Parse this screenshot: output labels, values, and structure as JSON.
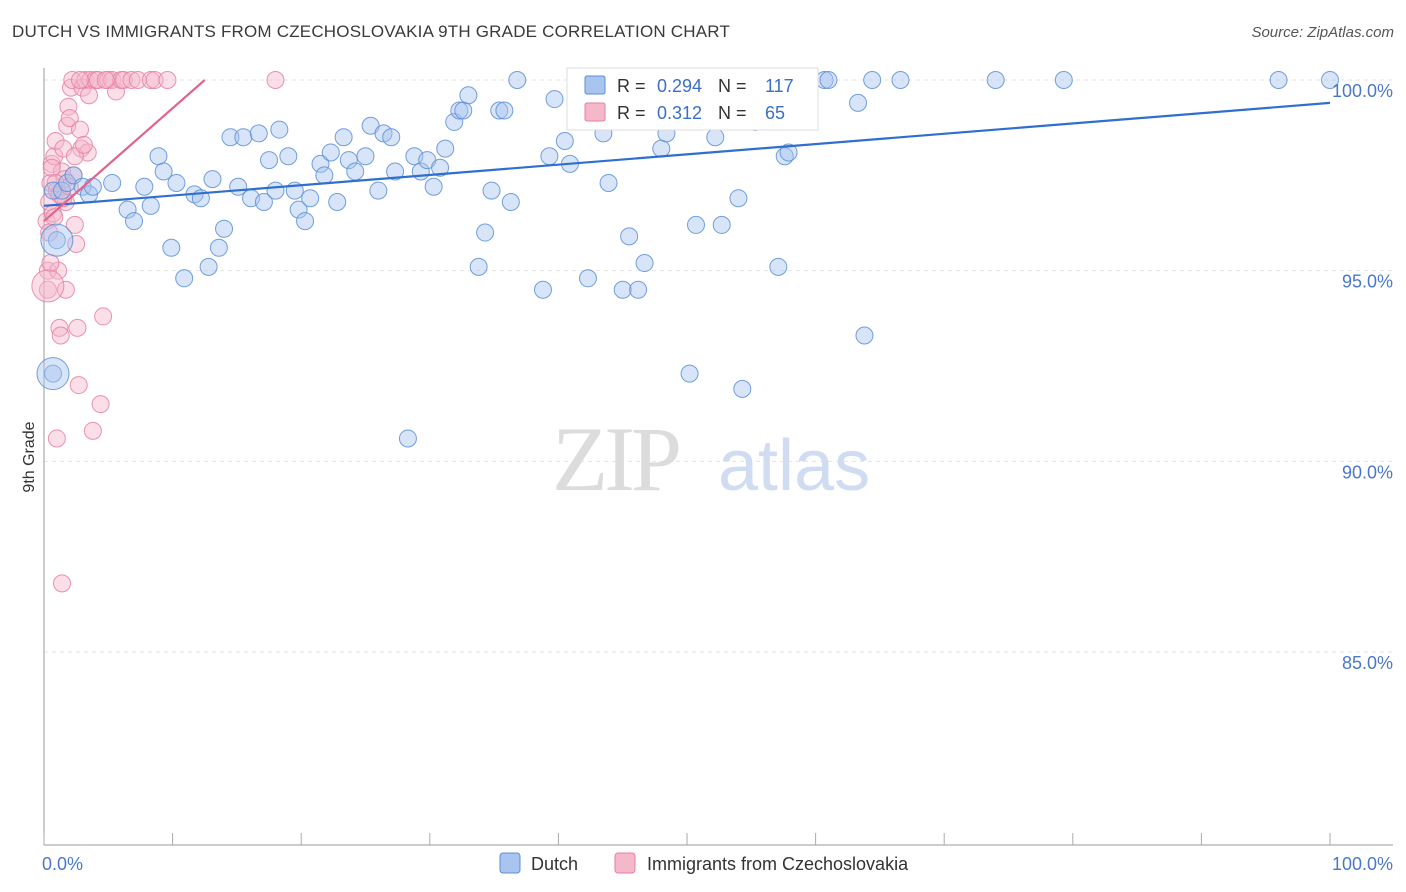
{
  "header": {
    "title": "DUTCH VS IMMIGRANTS FROM CZECHOSLOVAKIA 9TH GRADE CORRELATION CHART",
    "source": "Source: ZipAtlas.com"
  },
  "watermark": {
    "zip": "ZIP",
    "atlas": "atlas"
  },
  "legend": {
    "r_label": "R =",
    "n_label": "N =",
    "dutch": {
      "r": "0.294",
      "n": "117"
    },
    "czech": {
      "r": "0.312",
      "n": "65"
    }
  },
  "colors": {
    "blue": "#5b8fd6",
    "blue_fill": "#a9c4ef",
    "pink": "#e77fa2",
    "pink_fill": "#f5b8cb",
    "blue_line": "#2f6fcf",
    "pink_line": "#e0648e",
    "axis_text": "#4a78c8"
  },
  "chart_data": {
    "type": "scatter",
    "title": "DUTCH VS IMMIGRANTS FROM CZECHOSLOVAKIA 9TH GRADE CORRELATION CHART",
    "xlabel": "",
    "ylabel": "9th Grade",
    "xlim": [
      0,
      100
    ],
    "ylim": [
      80.5,
      100.9
    ],
    "x_tick_labels": [
      "0.0%",
      "100.0%"
    ],
    "y_ticks": [
      {
        "value": 100,
        "label": "100.0%"
      },
      {
        "value": 95,
        "label": "95.0%"
      },
      {
        "value": 90,
        "label": "90.0%"
      },
      {
        "value": 85,
        "label": "85.0%"
      }
    ],
    "series": [
      {
        "name": "Dutch",
        "color": "#5b8fd6",
        "trend": {
          "x": [
            0,
            100
          ],
          "y": [
            96.7,
            99.4
          ]
        },
        "points": [
          [
            0.7,
            97.1
          ],
          [
            1.0,
            95.8
          ],
          [
            0.7,
            92.3
          ],
          [
            1.4,
            97.1
          ],
          [
            1.8,
            97.3
          ],
          [
            2.3,
            97.5
          ],
          [
            3.0,
            97.2
          ],
          [
            3.5,
            97.0
          ],
          [
            3.8,
            97.2
          ],
          [
            5.3,
            97.3
          ],
          [
            6.5,
            96.6
          ],
          [
            7.0,
            96.3
          ],
          [
            7.8,
            97.2
          ],
          [
            8.3,
            96.7
          ],
          [
            8.9,
            98.0
          ],
          [
            9.3,
            97.6
          ],
          [
            9.9,
            95.6
          ],
          [
            10.3,
            97.3
          ],
          [
            10.9,
            94.8
          ],
          [
            11.7,
            97.0
          ],
          [
            12.2,
            96.9
          ],
          [
            12.8,
            95.1
          ],
          [
            13.1,
            97.4
          ],
          [
            13.6,
            95.6
          ],
          [
            14.0,
            96.1
          ],
          [
            14.5,
            98.5
          ],
          [
            15.1,
            97.2
          ],
          [
            15.5,
            98.5
          ],
          [
            16.1,
            96.9
          ],
          [
            16.7,
            98.6
          ],
          [
            17.1,
            96.8
          ],
          [
            17.5,
            97.9
          ],
          [
            18.0,
            97.1
          ],
          [
            18.3,
            98.7
          ],
          [
            19.0,
            98.0
          ],
          [
            19.5,
            97.1
          ],
          [
            19.8,
            96.6
          ],
          [
            20.3,
            96.3
          ],
          [
            20.7,
            96.9
          ],
          [
            21.5,
            97.8
          ],
          [
            21.8,
            97.5
          ],
          [
            22.3,
            98.1
          ],
          [
            22.8,
            96.8
          ],
          [
            23.3,
            98.5
          ],
          [
            23.7,
            97.9
          ],
          [
            24.2,
            97.6
          ],
          [
            25.0,
            98.0
          ],
          [
            25.4,
            98.8
          ],
          [
            26.0,
            97.1
          ],
          [
            26.4,
            98.6
          ],
          [
            27.0,
            98.5
          ],
          [
            27.3,
            97.6
          ],
          [
            28.3,
            90.6
          ],
          [
            28.8,
            98.0
          ],
          [
            29.3,
            97.6
          ],
          [
            29.8,
            97.9
          ],
          [
            30.3,
            97.2
          ],
          [
            30.8,
            97.7
          ],
          [
            31.2,
            98.2
          ],
          [
            31.9,
            98.9
          ],
          [
            32.3,
            99.2
          ],
          [
            32.6,
            99.2
          ],
          [
            33.0,
            99.6
          ],
          [
            33.8,
            95.1
          ],
          [
            34.3,
            96.0
          ],
          [
            34.8,
            97.1
          ],
          [
            35.4,
            99.2
          ],
          [
            35.8,
            99.2
          ],
          [
            36.3,
            96.8
          ],
          [
            36.8,
            100.0
          ],
          [
            38.8,
            94.5
          ],
          [
            39.3,
            98.0
          ],
          [
            39.7,
            99.5
          ],
          [
            40.5,
            98.4
          ],
          [
            40.9,
            97.8
          ],
          [
            42.0,
            99.2
          ],
          [
            42.3,
            94.8
          ],
          [
            43.5,
            98.6
          ],
          [
            43.9,
            97.3
          ],
          [
            44.3,
            100.0
          ],
          [
            45.0,
            94.5
          ],
          [
            45.5,
            95.9
          ],
          [
            46.2,
            94.5
          ],
          [
            46.7,
            95.2
          ],
          [
            47.3,
            99.1
          ],
          [
            48.0,
            98.2
          ],
          [
            48.4,
            98.6
          ],
          [
            50.2,
            92.3
          ],
          [
            50.7,
            96.2
          ],
          [
            52.2,
            98.5
          ],
          [
            52.7,
            96.2
          ],
          [
            53.3,
            100.0
          ],
          [
            54.0,
            96.9
          ],
          [
            54.3,
            91.9
          ],
          [
            55.3,
            98.9
          ],
          [
            57.1,
            95.1
          ],
          [
            57.6,
            98.0
          ],
          [
            57.9,
            98.1
          ],
          [
            59.1,
            100.0
          ],
          [
            60.7,
            100.0
          ],
          [
            61.0,
            100.0
          ],
          [
            63.3,
            99.4
          ],
          [
            63.8,
            93.3
          ],
          [
            64.4,
            100.0
          ],
          [
            66.6,
            100.0
          ],
          [
            74.0,
            100.0
          ],
          [
            79.3,
            100.0
          ],
          [
            96.0,
            100.0
          ],
          [
            100.0,
            100.0
          ]
        ],
        "large_points": [
          [
            1.0,
            95.8
          ],
          [
            0.7,
            92.3
          ]
        ]
      },
      {
        "name": "Immigrants from Czechoslovakia",
        "color": "#e77fa2",
        "trend": {
          "x": [
            0,
            12.5
          ],
          "y": [
            96.3,
            100.0
          ]
        },
        "points": [
          [
            0.2,
            96.3
          ],
          [
            0.3,
            95.0
          ],
          [
            0.3,
            94.5
          ],
          [
            0.4,
            96.8
          ],
          [
            0.5,
            97.3
          ],
          [
            0.6,
            97.8
          ],
          [
            0.7,
            96.5
          ],
          [
            0.8,
            98.0
          ],
          [
            0.9,
            98.4
          ],
          [
            1.0,
            97.1
          ],
          [
            1.1,
            95.0
          ],
          [
            1.2,
            93.5
          ],
          [
            1.3,
            93.3
          ],
          [
            1.4,
            97.6
          ],
          [
            1.5,
            98.2
          ],
          [
            1.6,
            97.4
          ],
          [
            1.7,
            96.8
          ],
          [
            1.8,
            98.8
          ],
          [
            1.9,
            99.3
          ],
          [
            2.0,
            99.0
          ],
          [
            2.1,
            99.8
          ],
          [
            2.2,
            100.0
          ],
          [
            2.3,
            97.5
          ],
          [
            2.4,
            96.2
          ],
          [
            2.5,
            95.7
          ],
          [
            2.6,
            93.5
          ],
          [
            2.7,
            92.0
          ],
          [
            2.8,
            98.7
          ],
          [
            2.9,
            98.2
          ],
          [
            3.0,
            99.8
          ],
          [
            3.2,
            100.0
          ],
          [
            3.4,
            98.1
          ],
          [
            3.6,
            100.0
          ],
          [
            3.8,
            90.8
          ],
          [
            4.0,
            100.0
          ],
          [
            4.2,
            100.0
          ],
          [
            4.4,
            91.5
          ],
          [
            4.6,
            93.8
          ],
          [
            5.0,
            100.0
          ],
          [
            5.3,
            100.0
          ],
          [
            5.6,
            99.7
          ],
          [
            6.0,
            100.0
          ],
          [
            6.2,
            100.0
          ],
          [
            0.6,
            97.7
          ],
          [
            0.8,
            96.4
          ],
          [
            1.0,
            90.6
          ],
          [
            1.4,
            86.8
          ],
          [
            0.9,
            97.3
          ],
          [
            1.7,
            94.5
          ],
          [
            2.4,
            98.0
          ],
          [
            3.5,
            99.6
          ],
          [
            2.8,
            100.0
          ],
          [
            4.8,
            100.0
          ],
          [
            6.8,
            100.0
          ],
          [
            7.3,
            100.0
          ],
          [
            8.3,
            100.0
          ],
          [
            8.6,
            100.0
          ],
          [
            9.6,
            100.0
          ],
          [
            18.0,
            100.0
          ],
          [
            1.2,
            97.0
          ],
          [
            1.5,
            96.9
          ],
          [
            0.4,
            96.0
          ],
          [
            2.0,
            97.2
          ],
          [
            3.1,
            98.3
          ],
          [
            0.5,
            95.2
          ]
        ],
        "large_points": [
          [
            0.3,
            94.6
          ]
        ]
      }
    ],
    "legend_entries": [
      "Dutch",
      "Immigrants from Czechoslovakia"
    ]
  }
}
